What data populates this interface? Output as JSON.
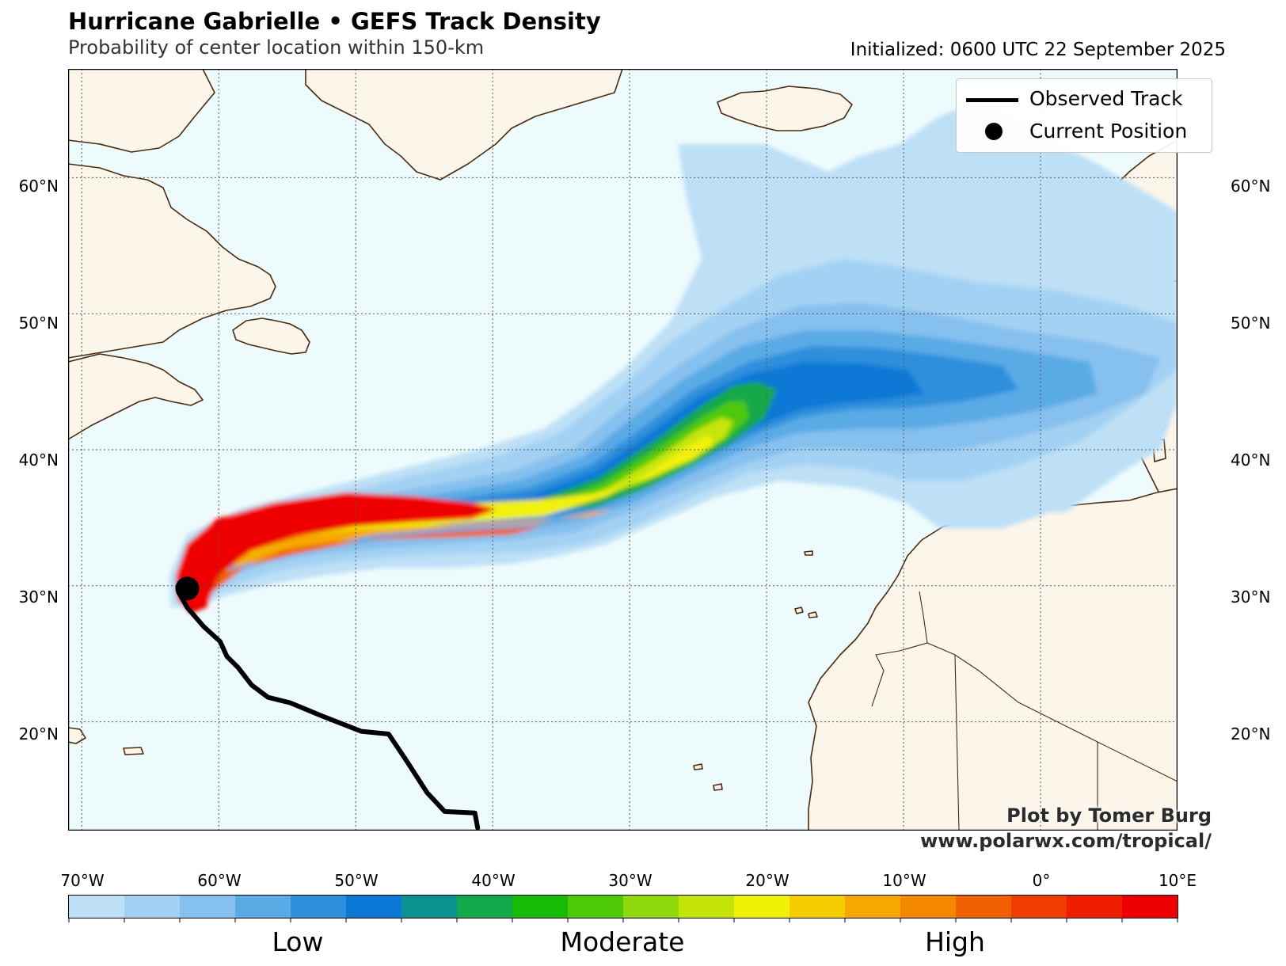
{
  "header": {
    "title": "Hurricane Gabrielle • GEFS Track Density",
    "subtitle": "Probability of center location within 150-km",
    "initialized": "Initialized: 0600 UTC 22 September 2025"
  },
  "map": {
    "lon_range": [
      -71,
      10
    ],
    "lat_range": [
      12,
      68
    ],
    "lat_labels": [
      "60°N",
      "50°N",
      "40°N",
      "30°N",
      "20°N"
    ],
    "lat_values": [
      60,
      50,
      40,
      30,
      20
    ],
    "lon_labels": [
      "70°W",
      "60°W",
      "50°W",
      "40°W",
      "30°W",
      "20°W",
      "10°W",
      "0°",
      "10°E"
    ],
    "lon_values": [
      -70,
      -60,
      -50,
      -40,
      -30,
      -20,
      -10,
      0,
      10
    ],
    "colors": {
      "ocean": "#eefbfd",
      "land": "#fcf5ea",
      "coast": "#4a2a10",
      "track": "#000000"
    },
    "current_position": {
      "lon": -62.3,
      "lat": 29.8
    },
    "observed_track": [
      [
        -41.1,
        12.2
      ],
      [
        -41.3,
        13.3
      ],
      [
        -43.5,
        13.4
      ],
      [
        -44.8,
        14.8
      ],
      [
        -46.2,
        17.0
      ],
      [
        -47.6,
        19.1
      ],
      [
        -49.6,
        19.3
      ],
      [
        -52.4,
        20.4
      ],
      [
        -54.8,
        21.4
      ],
      [
        -56.4,
        21.8
      ],
      [
        -57.6,
        22.7
      ],
      [
        -58.6,
        24.0
      ],
      [
        -59.4,
        24.8
      ],
      [
        -59.9,
        25.9
      ],
      [
        -61.1,
        27.0
      ],
      [
        -62.3,
        28.4
      ],
      [
        -62.8,
        29.3
      ],
      [
        -62.3,
        29.8
      ]
    ]
  },
  "legend": {
    "observed_track": "Observed Track",
    "current_position": "Current Position"
  },
  "colorbar": {
    "colors": [
      "#bde0f7",
      "#a3d1f3",
      "#86c0ee",
      "#5aaae6",
      "#2f8fdc",
      "#0b78d6",
      "#0b9190",
      "#13a84a",
      "#17bb05",
      "#4ec90a",
      "#8fd80e",
      "#c5e50a",
      "#f1f108",
      "#f6cd00",
      "#f6a800",
      "#f38700",
      "#f06000",
      "#ef3c00",
      "#ef1e00",
      "#ee0000"
    ],
    "labels": [
      "Low",
      "Moderate",
      "High"
    ]
  },
  "credit": {
    "line1": "Plot by Tomer Burg",
    "line2": "www.polarwx.com/tropical/"
  }
}
